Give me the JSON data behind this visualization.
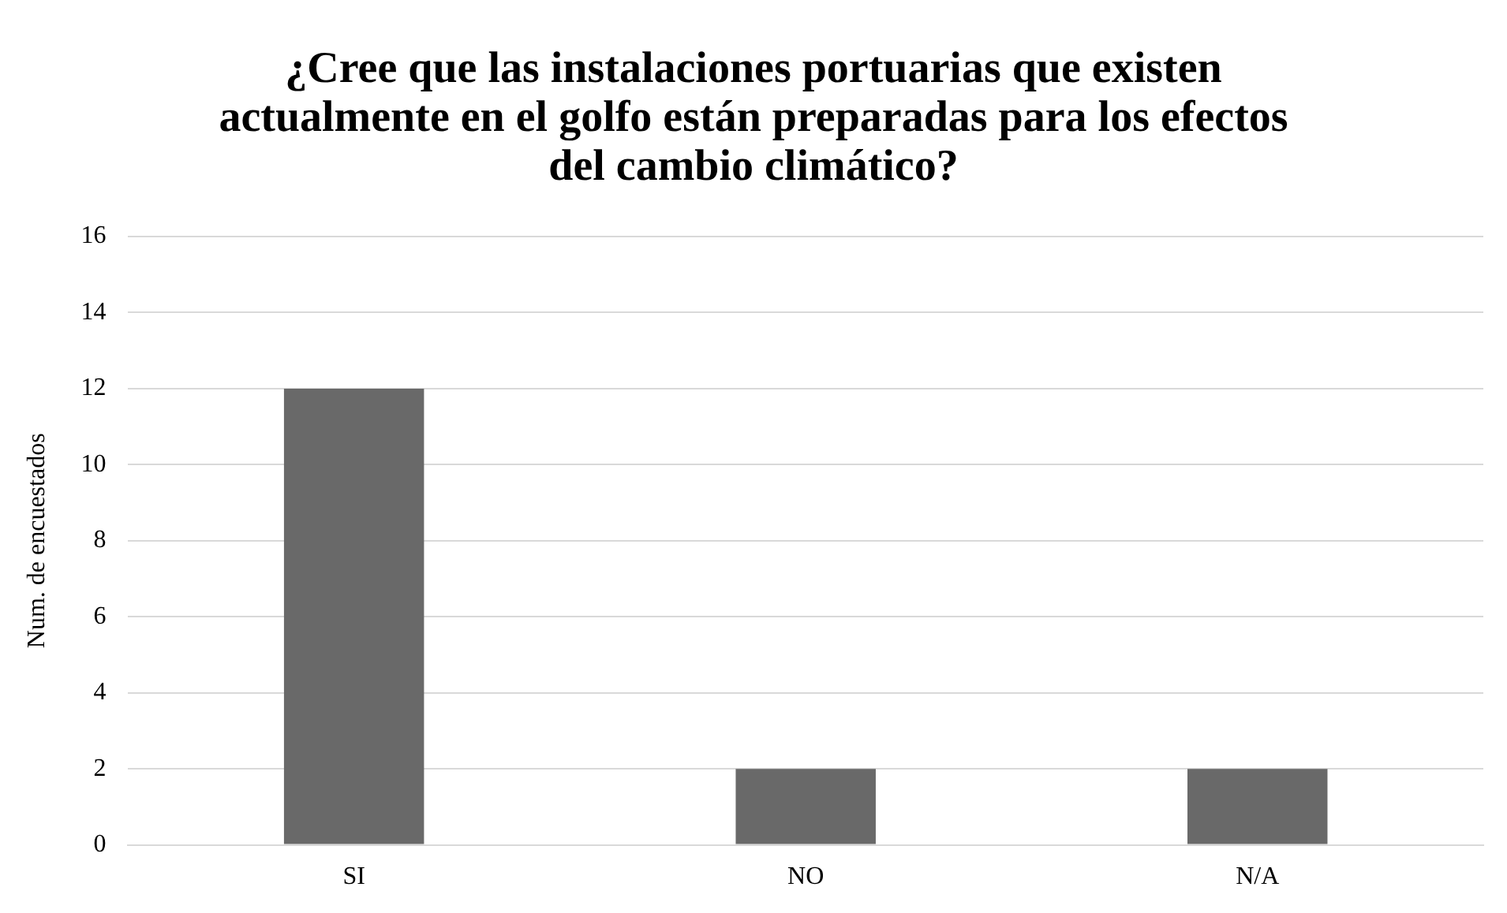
{
  "chart_data": {
    "type": "bar",
    "title": "¿Cree que las instalaciones portuarias que existen actualmente en el golfo están preparadas para los efectos del cambio climático?",
    "ylabel": "Num. de encuestados",
    "categories": [
      "SI",
      "NO",
      "N/A"
    ],
    "values": [
      12,
      2,
      2
    ],
    "color": "#696969",
    "ylim": [
      0,
      16
    ],
    "yticks": [
      0,
      2,
      4,
      6,
      8,
      10,
      12,
      14,
      16
    ],
    "grid": "y",
    "legend": false
  }
}
